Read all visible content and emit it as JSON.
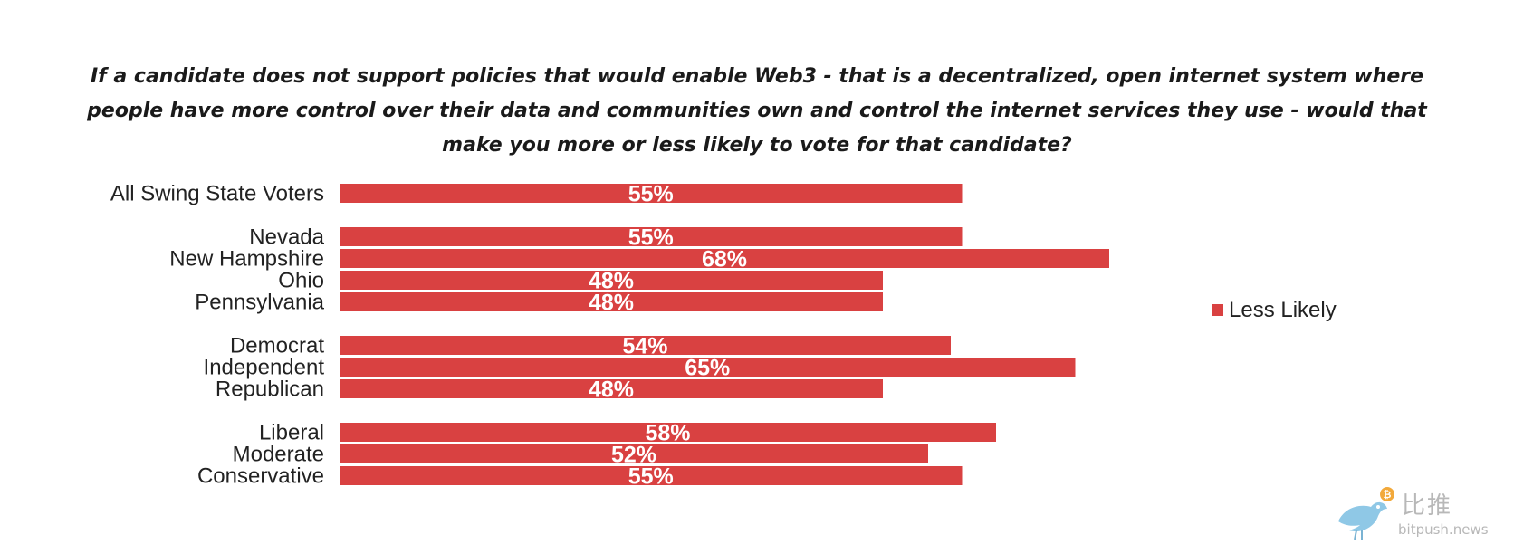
{
  "chart_data": {
    "type": "bar",
    "orientation": "horizontal",
    "title": "If a candidate does not support policies that would enable Web3 - that is a decentralized, open internet system where people have more control over their data and communities own and control the internet services they use - would that make you more or less likely to vote for that candidate?",
    "groups": [
      {
        "categories": [
          "All Swing State Voters"
        ],
        "values": [
          55
        ]
      },
      {
        "categories": [
          "Nevada",
          "New Hampshire",
          "Ohio",
          "Pennsylvania"
        ],
        "values": [
          55,
          68,
          48,
          48
        ]
      },
      {
        "categories": [
          "Democrat",
          "Independent",
          "Republican"
        ],
        "values": [
          54,
          65,
          48
        ]
      },
      {
        "categories": [
          "Liberal",
          "Moderate",
          "Conservative"
        ],
        "values": [
          58,
          52,
          55
        ]
      }
    ],
    "series": [
      {
        "name": "Less Likely",
        "color": "#d94141"
      }
    ],
    "value_suffix": "%",
    "xlim": [
      0,
      100
    ],
    "grid": false,
    "legend_position": "right"
  },
  "watermark": {
    "brand_cn": "比推",
    "url": "bitpush.news",
    "logo_icon": "bird-bitcoin-icon"
  }
}
